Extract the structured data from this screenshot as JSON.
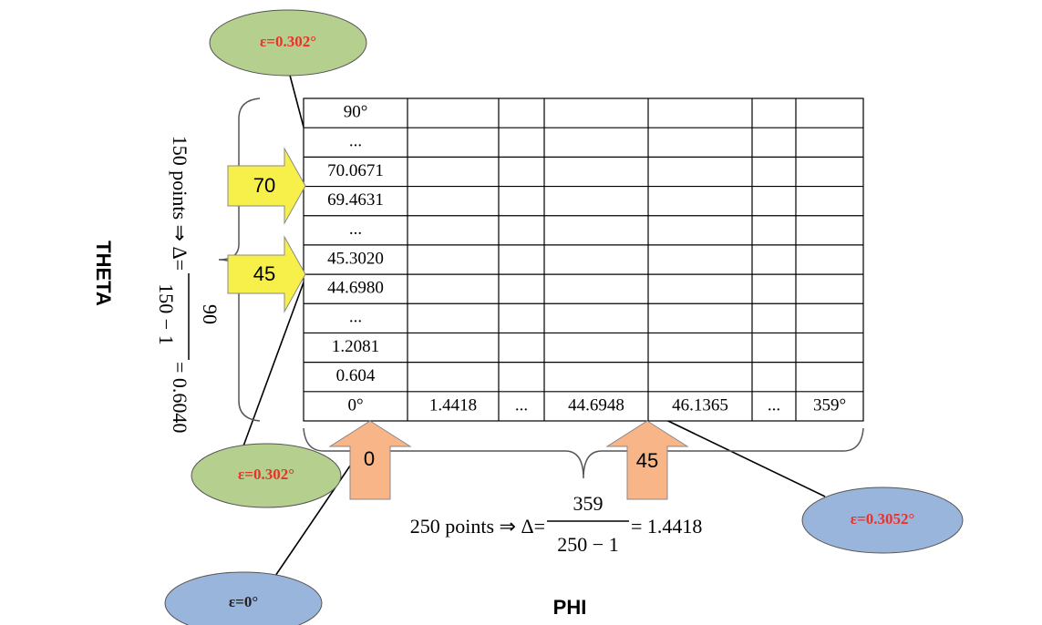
{
  "ellipses": [
    {
      "label": "ε=0.302°"
    },
    {
      "label": "ε=0.302°"
    },
    {
      "label": "ε=0°"
    },
    {
      "label": "ε=0.3052°"
    }
  ],
  "axis_labels": {
    "theta": "THETA",
    "phi": "PHI"
  },
  "table": {
    "row_labels": [
      "90°",
      "...",
      "70.0671",
      "69.4631",
      "...",
      "45.3020",
      "44.6980",
      "...",
      "1.2081",
      "0.604"
    ],
    "bottom_row": [
      "0°",
      "1.4418",
      "...",
      "44.6948",
      "46.1365",
      "...",
      "359°"
    ]
  },
  "theta_arrows": [
    "70",
    "45"
  ],
  "phi_arrows": [
    "0",
    "45"
  ],
  "theta_formula": {
    "prefix": "150 points ⇒ Δ=",
    "numerator": "90",
    "denominator": "150 − 1",
    "result": "= 0.6040"
  },
  "phi_formula": {
    "prefix": "250 points ⇒ Δ=",
    "numerator": "359",
    "denominator": "250 − 1",
    "result": "= 1.4418"
  }
}
